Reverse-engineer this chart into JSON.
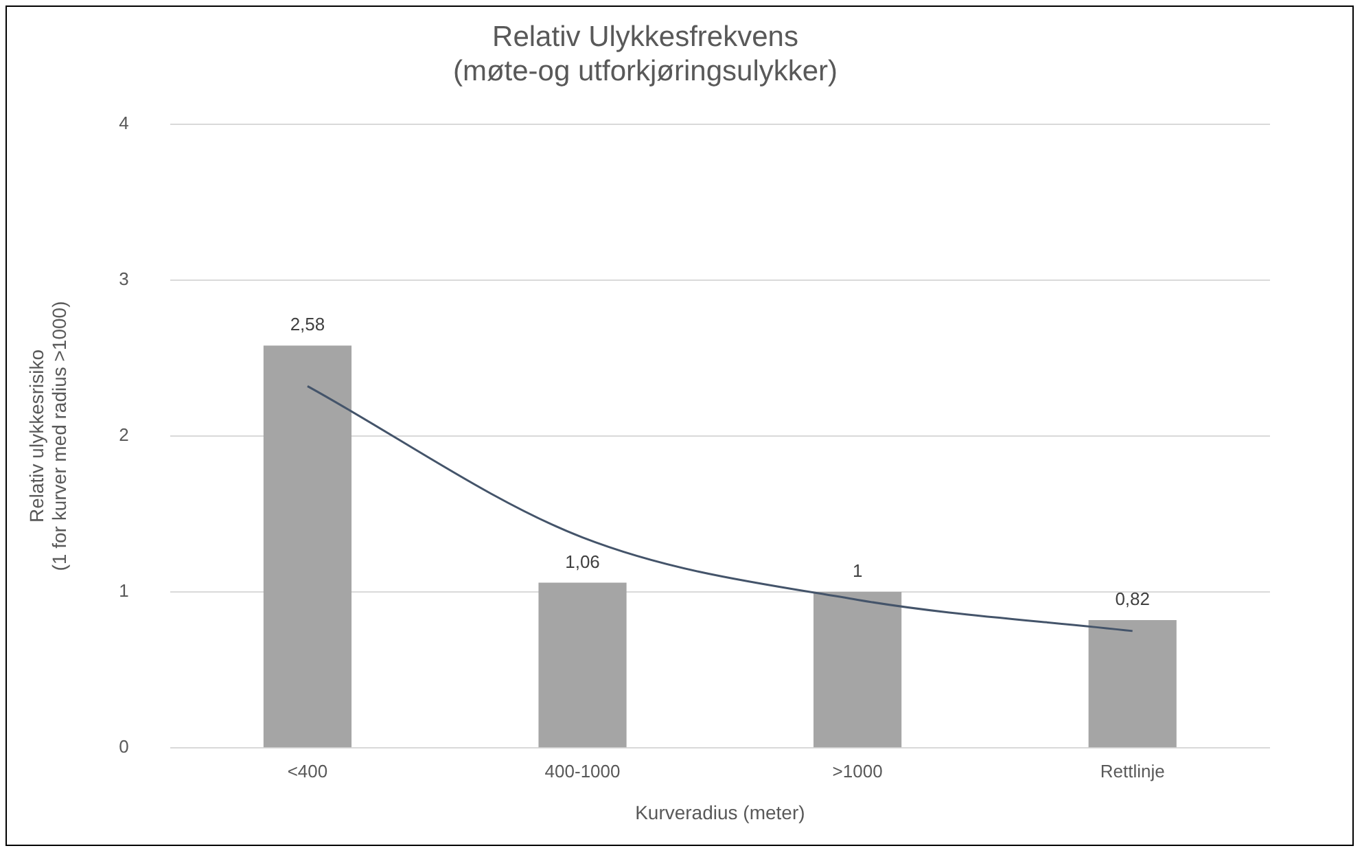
{
  "chart_data": {
    "type": "bar",
    "title": "Relativ Ulykkesfrekvens\n(møte-og utforkjøringsulykker)",
    "xlabel": "Kurveradius (meter)",
    "ylabel": "Relativ ulykkesrisiko\n(1 for kurver med radius >1000)",
    "categories": [
      "<400",
      "400-1000",
      ">1000",
      "Rettlinje"
    ],
    "series": [
      {
        "color": "#a5a5a5",
        "values": [
          2.58,
          1.06,
          1,
          0.82
        ],
        "value_labels": [
          "2,58",
          "1,06",
          "1",
          "0,82"
        ]
      },
      {
        "type": "line",
        "color": "#44546a",
        "values": [
          2.32,
          1.35,
          0.95,
          0.75
        ],
        "marker": "none",
        "line_style": "solid"
      }
    ],
    "ylim": [
      0,
      4
    ],
    "yticks": [
      0,
      1,
      2,
      3,
      4
    ],
    "grid": "y",
    "legend": false
  }
}
